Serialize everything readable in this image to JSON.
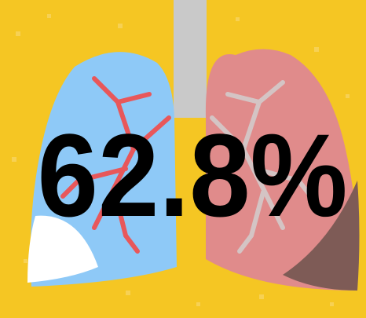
{
  "headline": "62.8%"
}
